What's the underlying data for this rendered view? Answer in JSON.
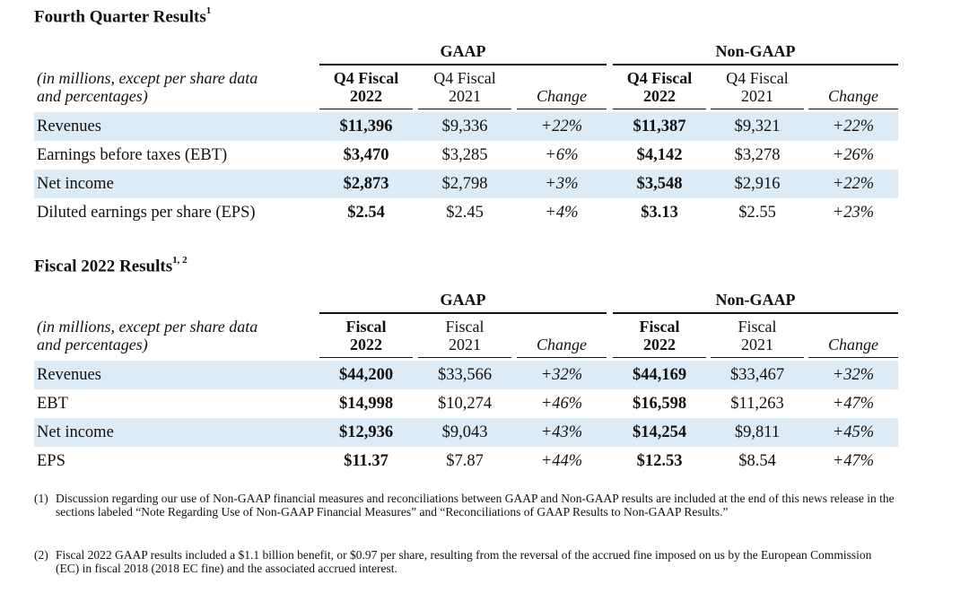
{
  "sections": [
    {
      "title": "Fourth Quarter Results",
      "title_sup": "1",
      "groups": [
        "GAAP",
        "Non-GAAP"
      ],
      "header_label": [
        "(in millions, except per share data",
        "and percentages)"
      ],
      "col_headers": [
        [
          "Q4 Fiscal",
          "2022"
        ],
        [
          "Q4 Fiscal",
          "2021"
        ],
        [
          "",
          "Change"
        ],
        [
          "Q4 Fiscal",
          "2022"
        ],
        [
          "Q4 Fiscal",
          "2021"
        ],
        [
          "",
          "Change"
        ]
      ],
      "rows": [
        {
          "label": "Revenues",
          "values": [
            "$11,396",
            "$9,336",
            "+22%",
            "$11,387",
            "$9,321",
            "+22%"
          ]
        },
        {
          "label": "Earnings before taxes (EBT)",
          "values": [
            "$3,470",
            "$3,285",
            "+6%",
            "$4,142",
            "$3,278",
            "+26%"
          ]
        },
        {
          "label": "Net income",
          "values": [
            "$2,873",
            "$2,798",
            "+3%",
            "$3,548",
            "$2,916",
            "+22%"
          ]
        },
        {
          "label": "Diluted earnings per share (EPS)",
          "values": [
            "$2.54",
            "$2.45",
            "+4%",
            "$3.13",
            "$2.55",
            "+23%"
          ]
        }
      ]
    },
    {
      "title": "Fiscal 2022 Results",
      "title_sup": "1, 2",
      "groups": [
        "GAAP",
        "Non-GAAP"
      ],
      "header_label": [
        "(in millions, except per share data",
        "and percentages)"
      ],
      "col_headers": [
        [
          "Fiscal",
          "2022"
        ],
        [
          "Fiscal",
          "2021"
        ],
        [
          "",
          "Change"
        ],
        [
          "Fiscal",
          "2022"
        ],
        [
          "Fiscal",
          "2021"
        ],
        [
          "",
          "Change"
        ]
      ],
      "rows": [
        {
          "label": "Revenues",
          "values": [
            "$44,200",
            "$33,566",
            "+32%",
            "$44,169",
            "$33,467",
            "+32%"
          ]
        },
        {
          "label": "EBT",
          "values": [
            "$14,998",
            "$10,274",
            "+46%",
            "$16,598",
            "$11,263",
            "+47%"
          ]
        },
        {
          "label": "Net income",
          "values": [
            "$12,936",
            "$9,043",
            "+43%",
            "$14,254",
            "$9,811",
            "+45%"
          ]
        },
        {
          "label": "EPS",
          "values": [
            "$11.37",
            "$7.87",
            "+44%",
            "$12.53",
            "$8.54",
            "+47%"
          ]
        }
      ]
    }
  ],
  "footnotes": [
    {
      "mark": "(1)",
      "text": "Discussion regarding our use of Non-GAAP financial measures and reconciliations between GAAP and Non-GAAP results are included at the end of this news release in the sections labeled “Note Regarding Use of Non-GAAP Financial Measures” and “Reconciliations of GAAP Results to Non-GAAP Results.”"
    },
    {
      "mark": "(2)",
      "text": "Fiscal 2022 GAAP results included a $1.1 billion benefit, or $0.97 per share, resulting from the reversal of the accrued fine imposed on us by the European Commission (EC) in fiscal 2018 (2018 EC fine) and the associated accrued interest."
    }
  ]
}
